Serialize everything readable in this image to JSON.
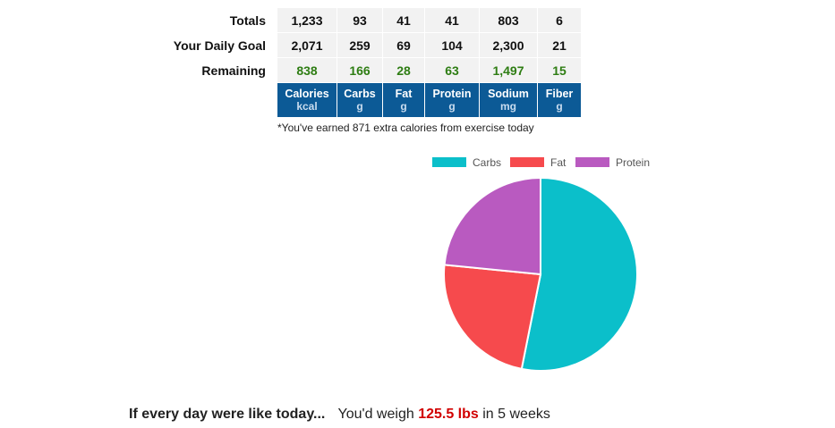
{
  "summary": {
    "row_labels": {
      "totals": "Totals",
      "goal": "Your Daily Goal",
      "remaining": "Remaining"
    },
    "columns": [
      {
        "name": "Calories",
        "unit": "kcal",
        "total": "1,233",
        "goal": "2,071",
        "remaining": "838"
      },
      {
        "name": "Carbs",
        "unit": "g",
        "total": "93",
        "goal": "259",
        "remaining": "166"
      },
      {
        "name": "Fat",
        "unit": "g",
        "total": "41",
        "goal": "69",
        "remaining": "28"
      },
      {
        "name": "Protein",
        "unit": "g",
        "total": "41",
        "goal": "104",
        "remaining": "63"
      },
      {
        "name": "Sodium",
        "unit": "mg",
        "total": "803",
        "goal": "2,300",
        "remaining": "1,497"
      },
      {
        "name": "Fiber",
        "unit": "g",
        "total": "6",
        "goal": "21",
        "remaining": "15"
      }
    ],
    "remaining_color": "#2e7d13",
    "header_color": "#0c5a96"
  },
  "exercise_note": "*You've earned 871 extra calories from exercise today",
  "chart_data": {
    "type": "pie",
    "categories": [
      "Carbs",
      "Fat",
      "Protein"
    ],
    "values": [
      93,
      41,
      41
    ],
    "colors": [
      "#0bbfca",
      "#f64a4d",
      "#b95ac0"
    ],
    "legend_position": "top"
  },
  "projection": {
    "lead": "If every day were like today...",
    "prefix": "You'd weigh",
    "weight": "125.5 lbs",
    "suffix": "in 5 weeks"
  }
}
